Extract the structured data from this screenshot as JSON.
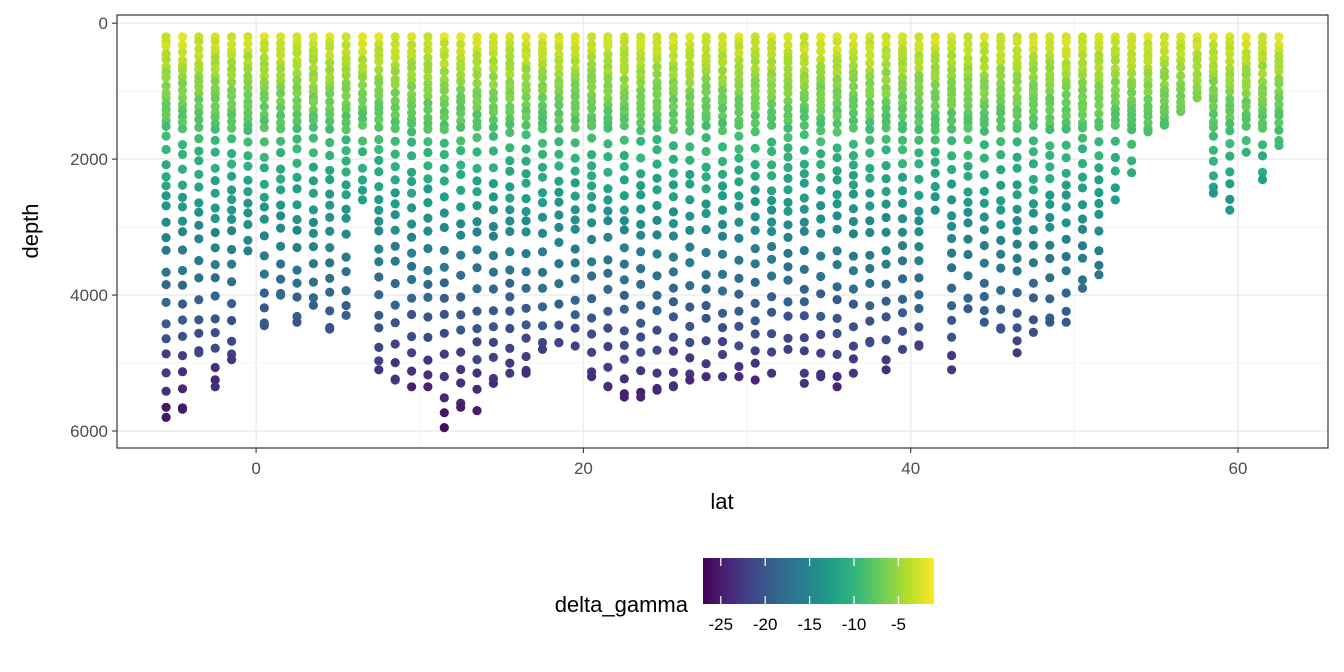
{
  "chart_data": {
    "type": "scatter",
    "title": "",
    "xlabel": "lat",
    "ylabel": "depth",
    "xlim": [
      -8.5,
      65.5
    ],
    "ylim": [
      6250,
      -120
    ],
    "y_reversed": true,
    "grid": true,
    "x_ticks": [
      0,
      20,
      40,
      60
    ],
    "y_ticks": [
      0,
      2000,
      4000,
      6000
    ],
    "x_tick_labels": [
      "0",
      "20",
      "40",
      "60"
    ],
    "y_tick_labels": [
      "0",
      "2000",
      "4000",
      "6000"
    ],
    "color_variable": "delta_gamma",
    "color_scale": "viridis",
    "color_range": [
      -27,
      -1
    ],
    "colors": [
      "#440154",
      "#482878",
      "#3e4989",
      "#31688e",
      "#26828e",
      "#1f9e89",
      "#35b779",
      "#6ece58",
      "#b5de2b",
      "#fde725"
    ],
    "legend": {
      "title": "delta_gamma",
      "position": "bottom",
      "tick_values": [
        -25,
        -20,
        -15,
        -10,
        -5
      ],
      "tick_labels": [
        "-25",
        "-20",
        "-15",
        "-10",
        "-5"
      ]
    },
    "stations": [
      {
        "lat": -5.5,
        "max_depth": 5800
      },
      {
        "lat": -4.5,
        "max_depth": 5680
      },
      {
        "lat": -3.5,
        "max_depth": 4850
      },
      {
        "lat": -2.5,
        "max_depth": 5350
      },
      {
        "lat": -1.5,
        "max_depth": 4950
      },
      {
        "lat": -0.5,
        "max_depth": 3350
      },
      {
        "lat": 0.5,
        "max_depth": 4450
      },
      {
        "lat": 1.5,
        "max_depth": 4000
      },
      {
        "lat": 2.5,
        "max_depth": 4400
      },
      {
        "lat": 3.5,
        "max_depth": 4150
      },
      {
        "lat": 4.5,
        "max_depth": 4500
      },
      {
        "lat": 5.5,
        "max_depth": 4300
      },
      {
        "lat": 6.5,
        "max_depth": 2600
      },
      {
        "lat": 7.5,
        "max_depth": 5100
      },
      {
        "lat": 8.5,
        "max_depth": 5250
      },
      {
        "lat": 9.5,
        "max_depth": 5350
      },
      {
        "lat": 10.5,
        "max_depth": 5350
      },
      {
        "lat": 11.5,
        "max_depth": 5950
      },
      {
        "lat": 12.5,
        "max_depth": 5650
      },
      {
        "lat": 13.5,
        "max_depth": 5700
      },
      {
        "lat": 14.5,
        "max_depth": 5300
      },
      {
        "lat": 15.5,
        "max_depth": 5150
      },
      {
        "lat": 16.5,
        "max_depth": 5150
      },
      {
        "lat": 17.5,
        "max_depth": 4800
      },
      {
        "lat": 18.5,
        "max_depth": 4700
      },
      {
        "lat": 19.5,
        "max_depth": 4750
      },
      {
        "lat": 20.5,
        "max_depth": 5200
      },
      {
        "lat": 21.5,
        "max_depth": 5350
      },
      {
        "lat": 22.5,
        "max_depth": 5500
      },
      {
        "lat": 23.5,
        "max_depth": 5500
      },
      {
        "lat": 24.5,
        "max_depth": 5400
      },
      {
        "lat": 25.5,
        "max_depth": 5350
      },
      {
        "lat": 26.5,
        "max_depth": 5250
      },
      {
        "lat": 27.5,
        "max_depth": 5200
      },
      {
        "lat": 28.5,
        "max_depth": 5200
      },
      {
        "lat": 29.5,
        "max_depth": 5200
      },
      {
        "lat": 30.5,
        "max_depth": 5250
      },
      {
        "lat": 31.5,
        "max_depth": 5150
      },
      {
        "lat": 32.5,
        "max_depth": 4800
      },
      {
        "lat": 33.5,
        "max_depth": 5300
      },
      {
        "lat": 34.5,
        "max_depth": 5200
      },
      {
        "lat": 35.5,
        "max_depth": 5350
      },
      {
        "lat": 36.5,
        "max_depth": 5150
      },
      {
        "lat": 37.5,
        "max_depth": 4700
      },
      {
        "lat": 38.5,
        "max_depth": 5100
      },
      {
        "lat": 39.5,
        "max_depth": 4800
      },
      {
        "lat": 40.5,
        "max_depth": 4750
      },
      {
        "lat": 41.5,
        "max_depth": 2750
      },
      {
        "lat": 42.5,
        "max_depth": 5100
      },
      {
        "lat": 43.5,
        "max_depth": 4200
      },
      {
        "lat": 44.5,
        "max_depth": 4400
      },
      {
        "lat": 45.5,
        "max_depth": 4500
      },
      {
        "lat": 46.5,
        "max_depth": 4850
      },
      {
        "lat": 47.5,
        "max_depth": 4550
      },
      {
        "lat": 48.5,
        "max_depth": 4400
      },
      {
        "lat": 49.5,
        "max_depth": 4400
      },
      {
        "lat": 50.5,
        "max_depth": 3900
      },
      {
        "lat": 51.5,
        "max_depth": 3700
      },
      {
        "lat": 52.5,
        "max_depth": 2600
      },
      {
        "lat": 53.5,
        "max_depth": 2200
      },
      {
        "lat": 54.5,
        "max_depth": 1600
      },
      {
        "lat": 55.5,
        "max_depth": 1500
      },
      {
        "lat": 56.5,
        "max_depth": 1300
      },
      {
        "lat": 57.5,
        "max_depth": 1100
      },
      {
        "lat": 58.5,
        "max_depth": 2500
      },
      {
        "lat": 59.5,
        "max_depth": 2750
      },
      {
        "lat": 60.5,
        "max_depth": 1900
      },
      {
        "lat": 61.5,
        "max_depth": 2300
      },
      {
        "lat": 62.5,
        "max_depth": 1800
      }
    ]
  }
}
